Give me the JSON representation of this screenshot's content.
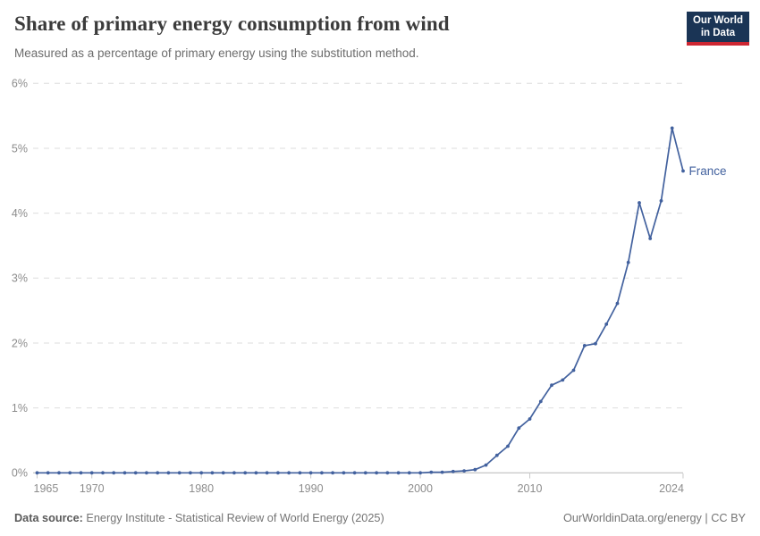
{
  "logo": {
    "line1": "Our World",
    "line2": "in Data",
    "bg_color": "#1a3455",
    "accent_color": "#cd2632"
  },
  "footer": {
    "source_label": "Data source: ",
    "source_text": "Energy Institute - Statistical Review of World Energy (2025)",
    "credit": "OurWorldinData.org/energy | CC BY"
  },
  "colors": {
    "grid": "#dedede",
    "axis_baseline": "#b8b8b8",
    "tick": "#c9c9c9",
    "axis_text": "#8c8c8c",
    "title_text": "#3b3b3b",
    "subtitle_text": "#6c6c6c"
  },
  "chart_data": {
    "type": "line",
    "title": "Share of primary energy consumption from wind",
    "subtitle": "Measured as a percentage of primary energy using the substitution method.",
    "xlabel": "",
    "ylabel": "",
    "ylim": [
      0,
      6
    ],
    "yticks": [
      0,
      1,
      2,
      3,
      4,
      5,
      6
    ],
    "ytick_labels": [
      "0%",
      "1%",
      "2%",
      "3%",
      "4%",
      "5%",
      "6%"
    ],
    "xticks": [
      1965,
      1970,
      1980,
      1990,
      2000,
      2010,
      2024
    ],
    "grid": "horizontal dashed",
    "legend": "series label at right end of line",
    "x": [
      1965,
      1966,
      1967,
      1968,
      1969,
      1970,
      1971,
      1972,
      1973,
      1974,
      1975,
      1976,
      1977,
      1978,
      1979,
      1980,
      1981,
      1982,
      1983,
      1984,
      1985,
      1986,
      1987,
      1988,
      1989,
      1990,
      1991,
      1992,
      1993,
      1994,
      1995,
      1996,
      1997,
      1998,
      1999,
      2000,
      2001,
      2002,
      2003,
      2004,
      2005,
      2006,
      2007,
      2008,
      2009,
      2010,
      2011,
      2012,
      2013,
      2014,
      2015,
      2016,
      2017,
      2018,
      2019,
      2020,
      2021,
      2022,
      2023,
      2024
    ],
    "series": [
      {
        "name": "France",
        "color": "#42619e",
        "values": [
          0,
          0,
          0,
          0,
          0,
          0,
          0,
          0,
          0,
          0,
          0,
          0,
          0,
          0,
          0,
          0,
          0,
          0,
          0,
          0,
          0,
          0,
          0,
          0,
          0,
          0,
          0,
          0,
          0,
          0,
          0,
          0,
          0,
          0,
          0,
          0,
          0.01,
          0.01,
          0.02,
          0.03,
          0.05,
          0.12,
          0.27,
          0.41,
          0.69,
          0.83,
          1.1,
          1.35,
          1.43,
          1.58,
          1.96,
          1.99,
          2.29,
          2.61,
          3.24,
          4.16,
          3.61,
          4.19,
          5.31,
          4.65
        ]
      }
    ]
  }
}
